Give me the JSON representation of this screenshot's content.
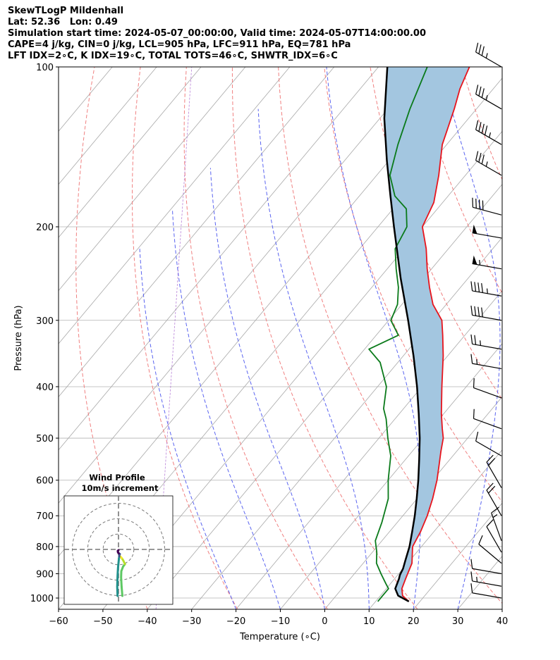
{
  "header": {
    "line1": "SkewTLogP Mildenhall",
    "line2": "Lat: 52.36   Lon: 0.49",
    "line3": "Simulation start time: 2024-05-07_00:00:00, Valid time: 2024-05-07T14:00:00.00",
    "line4": "CAPE=4 j/kg, CIN=0 j/kg, LCL=905 hPa, LFC=911 hPa, EQ=781 hPa",
    "line5": "LFT IDX=2∘C, K IDX=19∘C, TOTAL TOTS=46∘C, SHWTR_IDX=6∘C"
  },
  "chart_data": {
    "type": "line",
    "title": "SkewTLogP Mildenhall",
    "xlabel": "Temperature (∘C)",
    "ylabel": "Pressure (hPa)",
    "xlim": [
      -60,
      40
    ],
    "ylim": [
      1050,
      100
    ],
    "x_ticks": [
      "−60",
      "−50",
      "−40",
      "−30",
      "−20",
      "−10",
      "0",
      "10",
      "20",
      "30",
      "40"
    ],
    "x_tick_values": [
      -60,
      -50,
      -40,
      -30,
      -20,
      -10,
      0,
      10,
      20,
      30,
      40
    ],
    "y_ticks": [
      "100",
      "200",
      "300",
      "400",
      "500",
      "600",
      "700",
      "800",
      "900",
      "1000"
    ],
    "y_tick_values": [
      100,
      200,
      300,
      400,
      500,
      600,
      700,
      800,
      900,
      1000
    ],
    "skew_deg_per_decade": 100,
    "series": [
      {
        "name": "Temperature",
        "color": "#e8141c",
        "points": [
          [
            1015,
            17.5
          ],
          [
            990,
            15
          ],
          [
            960,
            13.5
          ],
          [
            920,
            12.5
          ],
          [
            900,
            12
          ],
          [
            860,
            11
          ],
          [
            800,
            8
          ],
          [
            750,
            7
          ],
          [
            700,
            5.5
          ],
          [
            650,
            3.5
          ],
          [
            600,
            1
          ],
          [
            560,
            -1.5
          ],
          [
            530,
            -3.5
          ],
          [
            500,
            -5.5
          ],
          [
            480,
            -7.5
          ],
          [
            450,
            -10.5
          ],
          [
            400,
            -15.5
          ],
          [
            350,
            -21
          ],
          [
            320,
            -25
          ],
          [
            300,
            -28
          ],
          [
            280,
            -33
          ],
          [
            260,
            -37
          ],
          [
            240,
            -41
          ],
          [
            220,
            -45
          ],
          [
            200,
            -50
          ],
          [
            180,
            -52
          ],
          [
            160,
            -56
          ],
          [
            140,
            -61
          ],
          [
            120,
            -65
          ],
          [
            110,
            -67.5
          ],
          [
            100,
            -69.5
          ]
        ]
      },
      {
        "name": "Dewpoint",
        "color": "#0a7a1a",
        "points": [
          [
            1015,
            10.5
          ],
          [
            990,
            10.5
          ],
          [
            960,
            10.5
          ],
          [
            940,
            9
          ],
          [
            900,
            6
          ],
          [
            860,
            3
          ],
          [
            820,
            1
          ],
          [
            780,
            -1.5
          ],
          [
            720,
            -3.5
          ],
          [
            650,
            -6.5
          ],
          [
            600,
            -10
          ],
          [
            540,
            -14
          ],
          [
            500,
            -18
          ],
          [
            460,
            -22
          ],
          [
            440,
            -24.5
          ],
          [
            400,
            -28
          ],
          [
            360,
            -34
          ],
          [
            340,
            -39
          ],
          [
            320,
            -35
          ],
          [
            300,
            -39.5
          ],
          [
            280,
            -41
          ],
          [
            260,
            -44
          ],
          [
            240,
            -48
          ],
          [
            220,
            -52
          ],
          [
            200,
            -53.5
          ],
          [
            185,
            -57
          ],
          [
            175,
            -62
          ],
          [
            160,
            -67
          ],
          [
            140,
            -71
          ],
          [
            120,
            -75
          ],
          [
            100,
            -79
          ]
        ]
      },
      {
        "name": "Parcel Profile",
        "color": "#000000",
        "points": [
          [
            1015,
            17.5
          ],
          [
            990,
            14
          ],
          [
            960,
            12
          ],
          [
            920,
            11
          ],
          [
            905,
            10.5
          ],
          [
            880,
            10
          ],
          [
            850,
            9
          ],
          [
            800,
            7.3
          ],
          [
            750,
            5.1
          ],
          [
            700,
            2.7
          ],
          [
            650,
            -0.1
          ],
          [
            600,
            -3.2
          ],
          [
            550,
            -6.8
          ],
          [
            500,
            -10.8
          ],
          [
            450,
            -15.6
          ],
          [
            400,
            -21.1
          ],
          [
            350,
            -27.7
          ],
          [
            300,
            -35.6
          ],
          [
            250,
            -45.2
          ],
          [
            200,
            -56.4
          ],
          [
            175,
            -63
          ],
          [
            150,
            -70.5
          ],
          [
            125,
            -79
          ],
          [
            100,
            -88
          ]
        ]
      }
    ],
    "cape_shading": {
      "color": "#a3c6e0",
      "between": [
        "Temperature",
        "Parcel Profile"
      ]
    },
    "dry_adiabats_theta_K": [
      230,
      250,
      270,
      290,
      310,
      330,
      350,
      370,
      390,
      410,
      430,
      450
    ],
    "moist_adiabats_start_C": [
      -20,
      -10,
      0,
      10,
      20,
      30,
      40
    ],
    "isotherms_C": [
      -150,
      -140,
      -130,
      -120,
      -110,
      -100,
      -90,
      -80,
      -70,
      -60,
      -50,
      -40,
      -30,
      -20,
      -10,
      0,
      10,
      20,
      30,
      40
    ],
    "wind_barbs": [
      {
        "p": 100,
        "speed_kt": 35,
        "dir": 300
      },
      {
        "p": 120,
        "speed_kt": 35,
        "dir": 300
      },
      {
        "p": 140,
        "speed_kt": 45,
        "dir": 300
      },
      {
        "p": 160,
        "speed_kt": 35,
        "dir": 300
      },
      {
        "p": 190,
        "speed_kt": 40,
        "dir": 285
      },
      {
        "p": 210,
        "speed_kt": 50,
        "dir": 280
      },
      {
        "p": 240,
        "speed_kt": 55,
        "dir": 280
      },
      {
        "p": 270,
        "speed_kt": 45,
        "dir": 280
      },
      {
        "p": 300,
        "speed_kt": 40,
        "dir": 280
      },
      {
        "p": 340,
        "speed_kt": 25,
        "dir": 280
      },
      {
        "p": 370,
        "speed_kt": 15,
        "dir": 280
      },
      {
        "p": 420,
        "speed_kt": 10,
        "dir": 290
      },
      {
        "p": 480,
        "speed_kt": 10,
        "dir": 290
      },
      {
        "p": 540,
        "speed_kt": 10,
        "dir": 300
      },
      {
        "p": 620,
        "speed_kt": 20,
        "dir": 330
      },
      {
        "p": 700,
        "speed_kt": 20,
        "dir": 330
      },
      {
        "p": 780,
        "speed_kt": 15,
        "dir": 340
      },
      {
        "p": 820,
        "speed_kt": 10,
        "dir": 330
      },
      {
        "p": 860,
        "speed_kt": 10,
        "dir": 310
      },
      {
        "p": 900,
        "speed_kt": 10,
        "dir": 280
      },
      {
        "p": 950,
        "speed_kt": 15,
        "dir": 280
      },
      {
        "p": 1000,
        "speed_kt": 10,
        "dir": 280
      }
    ],
    "hodograph": {
      "title_line1": "Wind Profile",
      "title_line2": "10m/s increment",
      "rings_ms": [
        10,
        20,
        30
      ],
      "range_ms": 30,
      "segments": [
        {
          "color": "#5dc863",
          "points": [
            [
              2.5,
              -30
            ],
            [
              2.0,
              -24
            ],
            [
              1.7,
              -18
            ],
            [
              1.8,
              -14
            ],
            [
              3.0,
              -11
            ],
            [
              4.2,
              -9.5
            ]
          ]
        },
        {
          "color": "#b5de2b",
          "points": [
            [
              4.2,
              -9.5
            ],
            [
              3.0,
              -7
            ],
            [
              2.0,
              -5.5
            ]
          ]
        },
        {
          "color": "#fde725",
          "points": [
            [
              2.0,
              -5.5
            ],
            [
              1.4,
              -4.8
            ],
            [
              0.8,
              -4.2
            ]
          ]
        },
        {
          "color": "#21918c",
          "points": [
            [
              -0.6,
              -30
            ],
            [
              -0.8,
              -24
            ],
            [
              -0.6,
              -17
            ],
            [
              -0.3,
              -12
            ],
            [
              0.2,
              -7
            ],
            [
              0.5,
              -4.5
            ]
          ]
        },
        {
          "color": "#3b528b",
          "points": [
            [
              0.5,
              -4.5
            ],
            [
              0.5,
              -3.5
            ],
            [
              0.9,
              -3
            ],
            [
              0.2,
              -2.5
            ]
          ]
        },
        {
          "color": "#440154",
          "points": [
            [
              0.2,
              -2.5
            ],
            [
              -0.3,
              -2.0
            ],
            [
              -0.5,
              -1.0
            ],
            [
              0.0,
              -0.5
            ]
          ]
        }
      ]
    }
  }
}
